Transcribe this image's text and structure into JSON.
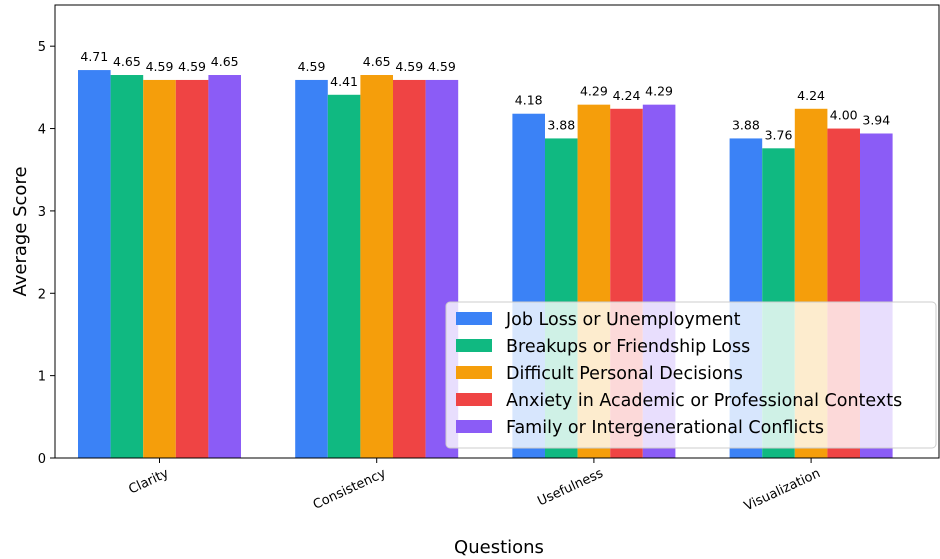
{
  "chart_data": {
    "type": "bar",
    "title": "",
    "xlabel": "Questions",
    "ylabel": "Average Score",
    "ylim": [
      0,
      5.5
    ],
    "yticks": [
      0,
      1,
      2,
      3,
      4,
      5
    ],
    "categories": [
      "Clarity",
      "Consistency",
      "Usefulness",
      "Visualization"
    ],
    "series": [
      {
        "name": "Job Loss or Unemployment",
        "color": "#3b82f6",
        "values": [
          4.71,
          4.59,
          4.18,
          3.88
        ]
      },
      {
        "name": "Breakups or Friendship Loss",
        "color": "#10b981",
        "values": [
          4.65,
          4.41,
          3.88,
          3.76
        ]
      },
      {
        "name": "Difficult Personal Decisions",
        "color": "#f59e0b",
        "values": [
          4.59,
          4.65,
          4.29,
          4.24
        ]
      },
      {
        "name": "Anxiety in Academic or Professional Contexts",
        "color": "#ef4444",
        "values": [
          4.59,
          4.59,
          4.24,
          4.0
        ]
      },
      {
        "name": "Family or Intergenerational Conflicts",
        "color": "#8b5cf6",
        "values": [
          4.65,
          4.59,
          4.29,
          3.94
        ]
      }
    ],
    "value_labels": [
      [
        "4.71",
        "4.59",
        "4.18",
        "3.88"
      ],
      [
        "4.65",
        "4.41",
        "3.88",
        "3.76"
      ],
      [
        "4.59",
        "4.65",
        "4.29",
        "4.24"
      ],
      [
        "4.59",
        "4.59",
        "4.24",
        "4.00"
      ],
      [
        "4.65",
        "4.59",
        "4.29",
        "3.94"
      ]
    ],
    "legend_position": "lower-right",
    "grid": false
  }
}
